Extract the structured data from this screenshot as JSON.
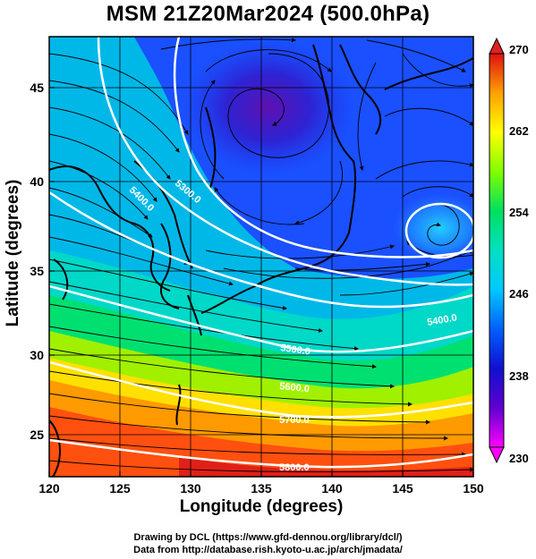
{
  "title": "MSM 21Z20Mar2024 (500.0hPa)",
  "axes": {
    "xlabel": "Longitude (degrees)",
    "ylabel": "Latitude  (degrees)",
    "xticks": [
      "120",
      "125",
      "130",
      "135",
      "140",
      "145",
      "150"
    ],
    "yticks": [
      "25",
      "30",
      "35",
      "40",
      "45"
    ],
    "xlim": [
      120,
      150
    ],
    "ylim": [
      22.4,
      47.6
    ]
  },
  "colorbar": {
    "ticks": [
      "270",
      "262",
      "254",
      "246",
      "238",
      "230"
    ],
    "range": [
      230,
      270
    ],
    "colors": [
      "#ff00ff",
      "#1010d0",
      "#0060ff",
      "#00c8ff",
      "#00e0c0",
      "#00e060",
      "#80ff00",
      "#ffff00",
      "#ffb000",
      "#ff5000",
      "#e01010"
    ]
  },
  "contours": [
    {
      "label": "5300.0"
    },
    {
      "label": "5400.0"
    },
    {
      "label": "5500.0"
    },
    {
      "label": "5600.0"
    },
    {
      "label": "5700.0"
    },
    {
      "label": "5800.0"
    }
  ],
  "credits": {
    "line1": "Drawing by DCL (https://www.gfd-dennou.org/library/dcl/)",
    "line2": "Data from http://database.rish.kyoto-u.ac.jp/arch/jmadata/"
  }
}
